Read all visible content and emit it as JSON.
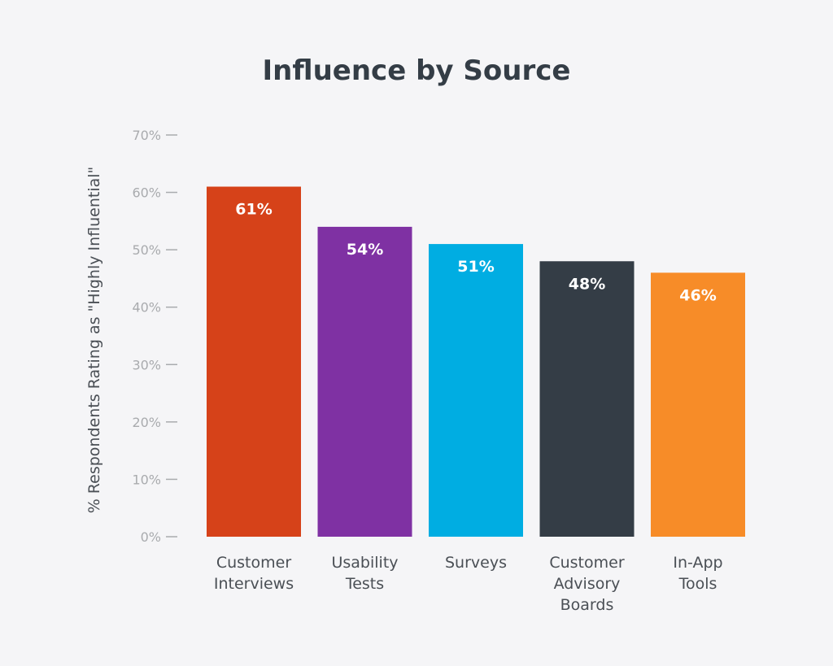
{
  "chart_data": {
    "type": "bar",
    "title": "Influence by Source",
    "ylabel": "% Respondents Rating as \"Highly Influential\"",
    "xlabel": "",
    "ylim": [
      0,
      70
    ],
    "yticks": [
      "0%",
      "10%",
      "20%",
      "30%",
      "40%",
      "50%",
      "60%",
      "70%"
    ],
    "ytick_values": [
      0,
      10,
      20,
      30,
      40,
      50,
      60,
      70
    ],
    "categories": [
      [
        "Customer",
        "Interviews"
      ],
      [
        "Usability",
        "Tests"
      ],
      [
        "Surveys"
      ],
      [
        "Customer",
        "Advisory",
        "Boards"
      ],
      [
        "In-App",
        "Tools"
      ]
    ],
    "values": [
      61,
      54,
      51,
      48,
      46
    ],
    "data_labels": [
      "61%",
      "54%",
      "51%",
      "48%",
      "46%"
    ],
    "colors": [
      "#d64219",
      "#7f31a3",
      "#00ade2",
      "#343d46",
      "#f78c28"
    ],
    "grid": false,
    "legend": "none"
  }
}
